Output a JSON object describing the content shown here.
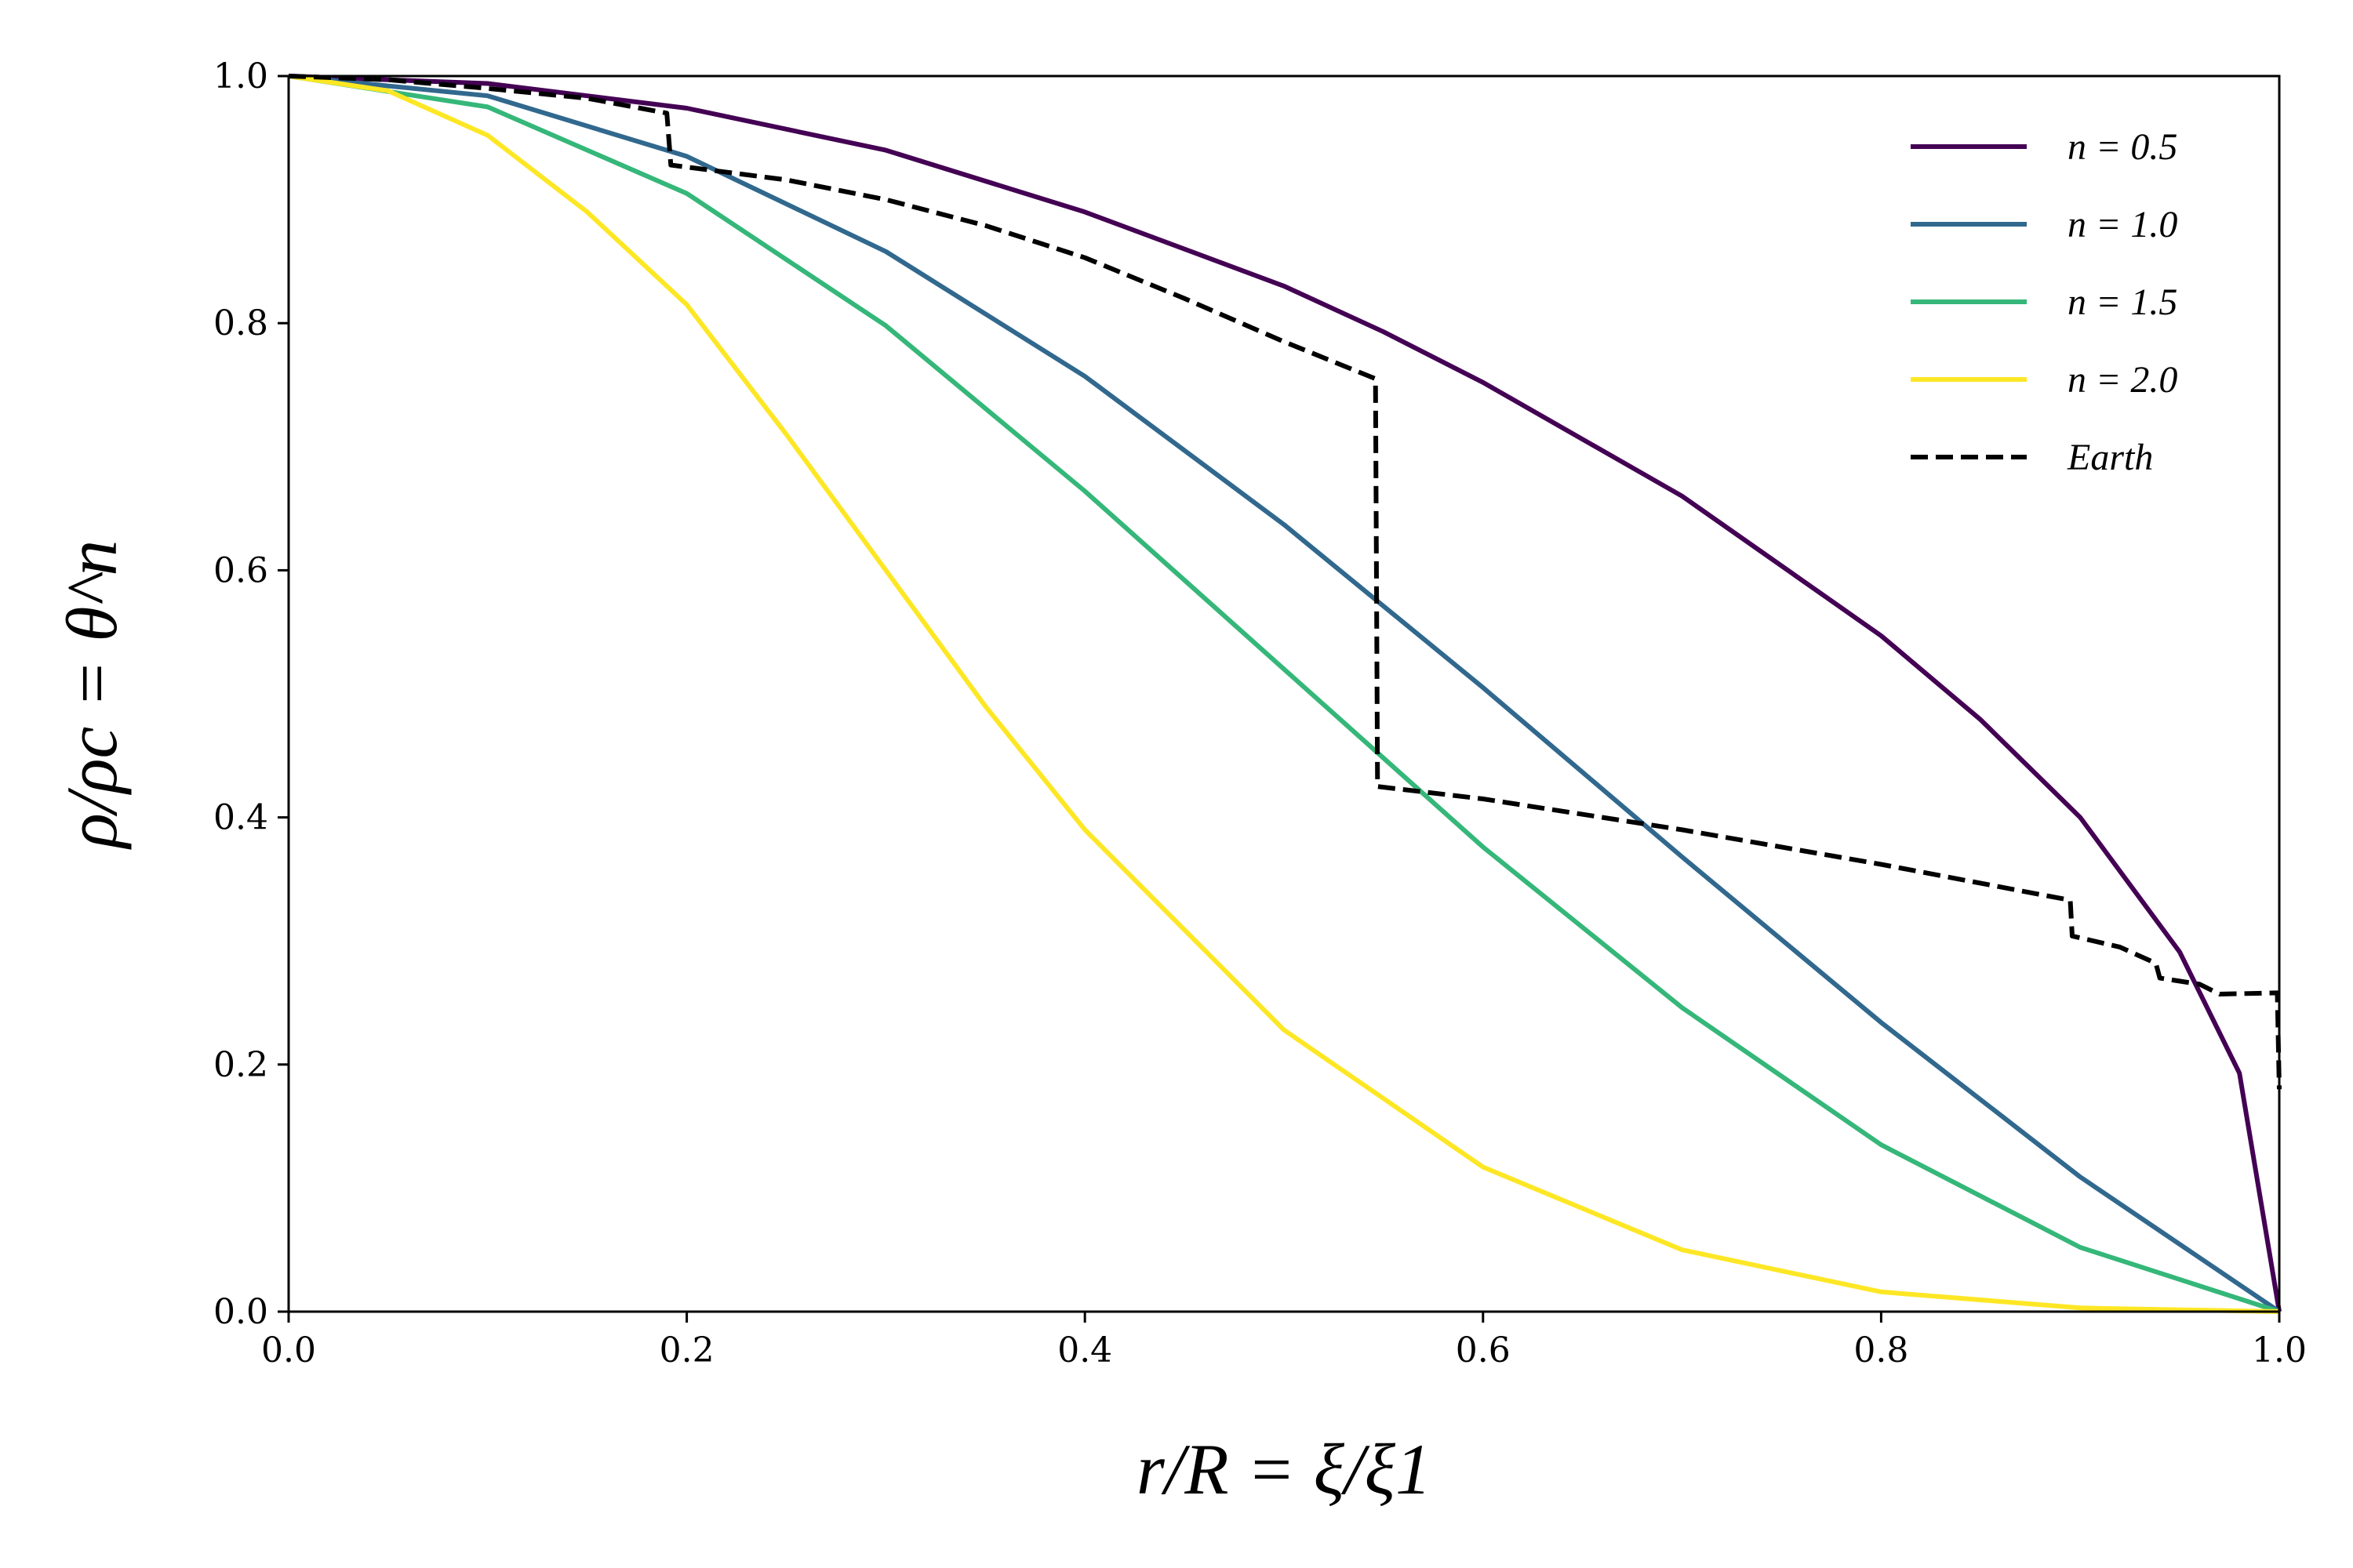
{
  "chart_data": {
    "type": "line",
    "title": "",
    "xlabel": "r/R = ξ/ξ1",
    "ylabel": "ρ/ρc = θ^n",
    "xlim": [
      0.0,
      1.0
    ],
    "ylim": [
      0.0,
      1.0
    ],
    "xticks": [
      "0.0",
      "0.2",
      "0.4",
      "0.6",
      "0.8",
      "1.0"
    ],
    "yticks": [
      "0.0",
      "0.2",
      "0.4",
      "0.6",
      "0.8",
      "1.0"
    ],
    "grid": false,
    "legend_position": "top-right",
    "series": [
      {
        "name": "n = 0.5",
        "color": "#440154",
        "style": "solid",
        "x": [
          0.0,
          0.1,
          0.2,
          0.3,
          0.4,
          0.5,
          0.55,
          0.6,
          0.7,
          0.8,
          0.85,
          0.9,
          0.95,
          0.98,
          1.0
        ],
        "y": [
          1.0,
          0.994,
          0.974,
          0.94,
          0.89,
          0.83,
          0.793,
          0.752,
          0.66,
          0.547,
          0.479,
          0.4,
          0.291,
          0.193,
          0.0
        ]
      },
      {
        "name": "n = 1.0",
        "color": "#31688e",
        "style": "solid",
        "x": [
          0.0,
          0.1,
          0.2,
          0.3,
          0.4,
          0.5,
          0.6,
          0.7,
          0.8,
          0.9,
          1.0
        ],
        "y": [
          1.0,
          0.984,
          0.935,
          0.858,
          0.757,
          0.637,
          0.505,
          0.368,
          0.234,
          0.109,
          0.0
        ]
      },
      {
        "name": "n = 1.5",
        "color": "#35b779",
        "style": "solid",
        "x": [
          0.0,
          0.1,
          0.2,
          0.3,
          0.4,
          0.5,
          0.6,
          0.7,
          0.8,
          0.9,
          1.0
        ],
        "y": [
          1.0,
          0.975,
          0.905,
          0.798,
          0.664,
          0.52,
          0.376,
          0.246,
          0.135,
          0.052,
          0.0
        ]
      },
      {
        "name": "n = 2.0",
        "color": "#fde725",
        "style": "solid",
        "x": [
          0.0,
          0.05,
          0.1,
          0.15,
          0.2,
          0.25,
          0.3,
          0.35,
          0.4,
          0.5,
          0.6,
          0.7,
          0.8,
          0.9,
          1.0
        ],
        "y": [
          1.0,
          0.988,
          0.952,
          0.89,
          0.815,
          0.71,
          0.6,
          0.49,
          0.39,
          0.228,
          0.117,
          0.05,
          0.016,
          0.003,
          0.0
        ]
      },
      {
        "name": "Earth",
        "color": "#000000",
        "style": "dashed",
        "x": [
          0.0,
          0.05,
          0.1,
          0.15,
          0.19,
          0.192,
          0.25,
          0.3,
          0.35,
          0.4,
          0.45,
          0.5,
          0.546,
          0.547,
          0.6,
          0.7,
          0.8,
          0.895,
          0.896,
          0.92,
          0.938,
          0.94,
          0.96,
          0.97,
          0.999,
          1.0
        ],
        "y": [
          1.0,
          0.997,
          0.99,
          0.982,
          0.97,
          0.928,
          0.916,
          0.9,
          0.879,
          0.853,
          0.82,
          0.785,
          0.755,
          0.425,
          0.415,
          0.39,
          0.362,
          0.333,
          0.304,
          0.295,
          0.282,
          0.27,
          0.265,
          0.257,
          0.258,
          0.18
        ]
      }
    ]
  }
}
